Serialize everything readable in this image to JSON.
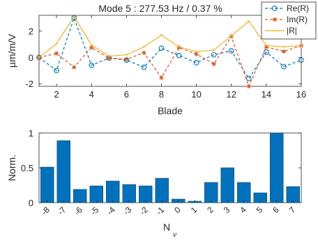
{
  "chart_data": [
    {
      "type": "line",
      "title": "Mode 5 :  277.53 Hz / 0.37 %",
      "xlabel": "Blade",
      "ylabel": "µm/m/V",
      "xlim": [
        1,
        16
      ],
      "ylim": [
        -2.2,
        3.2
      ],
      "xticks": [
        2,
        4,
        6,
        8,
        10,
        12,
        14,
        16
      ],
      "yticks": [
        -2,
        0,
        2
      ],
      "grid": false,
      "legend_position": "top-right",
      "x": [
        1,
        2,
        3,
        4,
        5,
        6,
        7,
        8,
        9,
        10,
        11,
        12,
        13,
        14,
        15,
        16
      ],
      "series": [
        {
          "name": "Re(R)",
          "color": "#0072BD",
          "marker": "circle",
          "values": [
            0.0,
            -1.0,
            3.0,
            -0.6,
            -0.05,
            -0.2,
            -0.75,
            0.7,
            0.15,
            -0.4,
            0.2,
            0.5,
            -1.6,
            0.4,
            -0.7,
            -0.2
          ]
        },
        {
          "name": "Im(R)",
          "color": "#D95319",
          "marker": "star",
          "values": [
            0.0,
            0.3,
            -0.75,
            0.75,
            -0.05,
            -0.15,
            0.35,
            -1.55,
            0.75,
            0.25,
            -0.5,
            1.6,
            -2.2,
            0.8,
            0.45,
            0.9
          ]
        },
        {
          "name": "|R|",
          "color": "#EDB120",
          "marker": "dot",
          "values": [
            0.0,
            1.05,
            3.1,
            0.95,
            0.1,
            0.2,
            0.8,
            1.7,
            0.8,
            0.45,
            0.55,
            1.65,
            2.75,
            0.9,
            0.8,
            0.9
          ]
        }
      ]
    },
    {
      "type": "bar",
      "xlabel": "N",
      "xlabel_sub": "ν",
      "ylabel": "Norm.",
      "ylim": [
        0,
        1
      ],
      "yticks": [
        0,
        0.5,
        1
      ],
      "ytick_labels": [
        "0",
        "0.5",
        "1"
      ],
      "grid": false,
      "color": "#0072BD",
      "categories": [
        "-8",
        "-7",
        "-6",
        "-5",
        "-4",
        "-3",
        "-2",
        "-1",
        "0",
        "1",
        "2",
        "3",
        "4",
        "5",
        "6",
        "7"
      ],
      "values": [
        0.51,
        0.89,
        0.19,
        0.24,
        0.31,
        0.26,
        0.24,
        0.35,
        0.05,
        0.02,
        0.29,
        0.5,
        0.29,
        0.14,
        1.0,
        0.23
      ]
    }
  ]
}
